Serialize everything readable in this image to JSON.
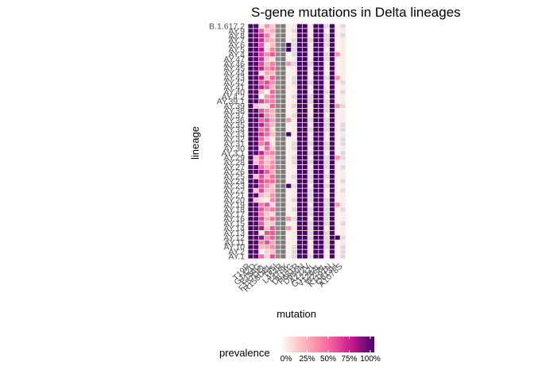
{
  "chart_data": {
    "type": "heatmap",
    "title": "S-gene mutations in Delta lineages",
    "xlabel": "mutation",
    "ylabel": "lineage",
    "grid": false,
    "legend_position": "bottom",
    "legend": {
      "title": "prevalence",
      "ticks": [
        "0%",
        "25%",
        "50%",
        "75%",
        "100%"
      ],
      "colors": [
        "#fff7f3",
        "#fbb4b9",
        "#f768a1",
        "#c51b8a",
        "#49006a"
      ]
    },
    "x_tick_labels": [
      "T19R",
      "G142D",
      "E156G",
      "F157DEL",
      "R158DEL",
      "T95I",
      "L452R",
      "T478K",
      "D614G",
      "P681R",
      "D950N",
      "A222V",
      "G1232L",
      "V1264L",
      "W258L",
      "K1191N",
      "Q613H",
      "A1078S"
    ],
    "y_tick_labels": [
      "B.1.617.2",
      "AY.9",
      "AY.8",
      "AY.7",
      "AY.6",
      "AY.5",
      "AY.4",
      "AY.47",
      "AY.46",
      "AY.45",
      "AY.44",
      "AY.43",
      "AY.42",
      "AY.41",
      "AY.40",
      "AY.4.2",
      "AY.39.1",
      "AY.39",
      "AY.38",
      "AY.37",
      "AY.36",
      "AY.35",
      "AY.34",
      "AY.33",
      "AY.32",
      "AY.31",
      "AY.30",
      "AY.3.1",
      "AY.29",
      "AY.28",
      "AY.27",
      "AY.26",
      "AY.25",
      "AY.24",
      "AY.23",
      "AY.22",
      "AY.21",
      "AY.20",
      "AY.19",
      "AY.18",
      "AY.17",
      "AY.16",
      "AY.15",
      "AY.14",
      "AY.13",
      "AY.12",
      "AY.11",
      "AY.10",
      "AY.2",
      "AY.1"
    ],
    "columns": [
      {
        "base": 100,
        "pattern": "none"
      },
      {
        "base": 97,
        "pattern": "sparse"
      },
      {
        "base": 55,
        "pattern": "pink"
      },
      {
        "base": 30,
        "pattern": "pink"
      },
      {
        "base": 30,
        "pattern": "pink"
      },
      {
        "base": 5,
        "pattern": "band"
      },
      {
        "base": 100,
        "pattern": "none"
      },
      {
        "base": 6,
        "pattern": "sparse"
      },
      {
        "base": 8,
        "pattern": "band"
      },
      {
        "base": 100,
        "pattern": "none"
      },
      {
        "base": 100,
        "pattern": "none"
      },
      {
        "base": 8,
        "pattern": "band"
      },
      {
        "base": 100,
        "pattern": "none"
      },
      {
        "base": 100,
        "pattern": "none"
      },
      {
        "base": 8,
        "pattern": "band"
      },
      {
        "base": 100,
        "pattern": "none"
      },
      {
        "base": 5,
        "pattern": "sparse"
      },
      {
        "base": 8,
        "pattern": "band"
      }
    ],
    "gray_columns": [
      5,
      6
    ]
  }
}
